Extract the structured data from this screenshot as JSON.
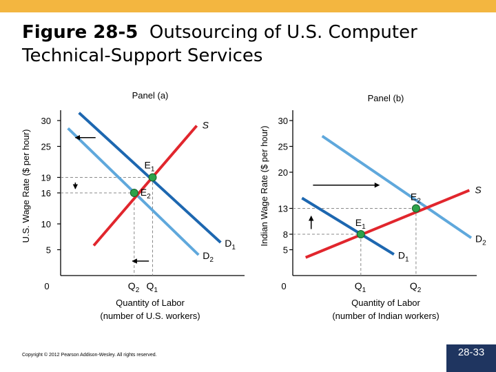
{
  "slide": {
    "figure_label": "Figure 28-5",
    "title_rest": "Outsourcing of U.S. Computer Technical-Support Services",
    "copyright": "Copyright © 2012 Pearson Addison-Wesley. All rights reserved.",
    "page_number": "28-33"
  },
  "colors": {
    "accent_bar": "#f3b640",
    "badge": "#1f3560",
    "supply": "#e1262d",
    "original_demand": "#1d67b0",
    "new_demand": "#5fa8dc",
    "equilibrium": "#2ca24a"
  },
  "chart_data": [
    {
      "type": "line",
      "title": "Panel (a)",
      "ylabel": "U.S. Wage Rate ($ per hour)",
      "xlabel": [
        "Quantity of Labor",
        "(number of U.S. workers)"
      ],
      "origin_label": "0",
      "yticks": [
        5,
        10,
        16,
        19,
        25,
        30
      ],
      "ylim": [
        0,
        32
      ],
      "xlim": [
        0,
        10
      ],
      "x_ticks": [
        {
          "sub": "2",
          "x": 4.0
        },
        {
          "sub": "1",
          "x": 5.0
        }
      ],
      "grid": false,
      "series": [
        {
          "name": "S",
          "role": "supply",
          "points": [
            [
              1.8,
              5.8
            ],
            [
              7.4,
              29.0
            ]
          ]
        },
        {
          "name": "D",
          "sub": "1",
          "role": "original_demand",
          "points": [
            [
              1.0,
              31.5
            ],
            [
              8.7,
              6.4
            ]
          ]
        },
        {
          "name": "D",
          "sub": "2",
          "role": "new_demand",
          "points": [
            [
              0.4,
              28.5
            ],
            [
              7.5,
              4.0
            ]
          ]
        }
      ],
      "equilibria": [
        {
          "label": "E",
          "sub": "1",
          "x": 5.0,
          "y": 19
        },
        {
          "label": "E",
          "sub": "2",
          "x": 4.0,
          "y": 16
        }
      ],
      "arrows": [
        {
          "from": [
            1.9,
            26.7
          ],
          "to": [
            0.8,
            26.7
          ],
          "note": "demand shifts left"
        },
        {
          "from": [
            4.8,
            2.8
          ],
          "to": [
            3.9,
            2.8
          ],
          "note": "quantity decreases"
        },
        {
          "from": [
            0.8,
            18.0
          ],
          "to": [
            0.8,
            16.8
          ],
          "note": "wage decreases"
        }
      ]
    },
    {
      "type": "line",
      "title": "Panel (b)",
      "ylabel": "Indian Wage Rate ($ per hour)",
      "xlabel": [
        "Quantity of Labor",
        "(number of Indian workers)"
      ],
      "origin_label": "0",
      "yticks": [
        5,
        8,
        13,
        20,
        25,
        30
      ],
      "ylim": [
        0,
        32
      ],
      "xlim": [
        0,
        10
      ],
      "x_ticks": [
        {
          "sub": "1",
          "x": 3.7
        },
        {
          "sub": "2",
          "x": 6.7
        }
      ],
      "grid": false,
      "series": [
        {
          "name": "S",
          "role": "supply",
          "points": [
            [
              0.7,
              3.5
            ],
            [
              9.6,
              16.5
            ]
          ]
        },
        {
          "name": "D",
          "sub": "1",
          "role": "original_demand",
          "points": [
            [
              0.5,
              15.0
            ],
            [
              5.5,
              4.1
            ]
          ]
        },
        {
          "name": "D",
          "sub": "2",
          "role": "new_demand",
          "points": [
            [
              1.6,
              27.0
            ],
            [
              9.7,
              7.3
            ]
          ]
        }
      ],
      "equilibria": [
        {
          "label": "E",
          "sub": "1",
          "x": 3.7,
          "y": 8
        },
        {
          "label": "E",
          "sub": "2",
          "x": 6.7,
          "y": 13
        }
      ],
      "arrows": [
        {
          "from": [
            1.1,
            17.5
          ],
          "to": [
            4.7,
            17.5
          ],
          "note": "demand shifts right"
        },
        {
          "from": [
            1.0,
            9.0
          ],
          "to": [
            1.0,
            11.5
          ],
          "note": "wage increases"
        }
      ]
    }
  ]
}
